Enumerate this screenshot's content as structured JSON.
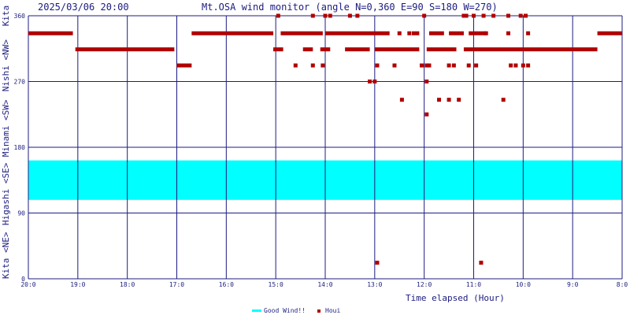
{
  "header": {
    "datetime": "2025/03/06 20:00",
    "title": "Mt.OSA wind monitor (angle N=0,360 E=90 S=180 W=270)"
  },
  "y_axis": {
    "ticks": [
      {
        "value": 360,
        "label": "360"
      },
      {
        "value": 270,
        "label": "270"
      },
      {
        "value": 180,
        "label": "180"
      },
      {
        "value": 90,
        "label": "90"
      },
      {
        "value": 0,
        "label": "0"
      }
    ],
    "direction_labels": [
      {
        "text": "Kita",
        "center": 360
      },
      {
        "text": "Nishi <NW>",
        "center": 292
      },
      {
        "text": "Minami <SW>",
        "center": 206
      },
      {
        "text": "Higashi <SE>",
        "center": 116
      },
      {
        "text": "Kita <NE>",
        "center": 32
      }
    ]
  },
  "x_axis": {
    "label": "Time elapsed (Hour)",
    "ticks": [
      "20:0",
      "19:0",
      "18:0",
      "17:0",
      "16:0",
      "15:0",
      "14:0",
      "13:0",
      "12:0",
      "11:0",
      "10:0",
      "9:0",
      "8:0"
    ]
  },
  "legend": {
    "good_wind_label": "Good Wind!!",
    "houi_label": "Houi"
  },
  "colors": {
    "grid": "#1c1c80",
    "good_wind": "#00ffff",
    "houi": "#b00000",
    "text": "#1c1c80"
  },
  "chart_data": {
    "type": "scatter",
    "xlabel": "Time elapsed (Hour)",
    "x_unit": "hour of day (20.0 at left edge decreasing to 8.0 at right edge)",
    "xlim": [
      20,
      8
    ],
    "ylim": [
      0,
      360
    ],
    "good_wind_band": [
      108,
      162
    ],
    "series": [
      {
        "name": "Houi",
        "segments": [
          {
            "x_from": 20.0,
            "x_to": 19.1,
            "y": 336
          },
          {
            "x_from": 19.05,
            "x_to": 17.05,
            "y": 314
          },
          {
            "x_from": 17.0,
            "x_to": 16.7,
            "y": 292
          },
          {
            "x_from": 16.7,
            "x_to": 15.05,
            "y": 336
          },
          {
            "x_from": 15.05,
            "x_to": 14.85,
            "y": 314
          },
          {
            "x_from": 14.9,
            "x_to": 14.05,
            "y": 336
          },
          {
            "x_from": 14.45,
            "x_to": 14.25,
            "y": 314
          },
          {
            "x_from": 14.0,
            "x_to": 12.7,
            "y": 336
          },
          {
            "x_from": 14.1,
            "x_to": 13.9,
            "y": 314
          },
          {
            "x_from": 13.6,
            "x_to": 13.1,
            "y": 314
          },
          {
            "x_from": 13.0,
            "x_to": 12.1,
            "y": 314
          },
          {
            "x_from": 12.25,
            "x_to": 12.1,
            "y": 336
          },
          {
            "x_from": 11.9,
            "x_to": 11.6,
            "y": 336
          },
          {
            "x_from": 11.5,
            "x_to": 11.2,
            "y": 336
          },
          {
            "x_from": 11.95,
            "x_to": 11.35,
            "y": 314
          },
          {
            "x_from": 11.1,
            "x_to": 10.75,
            "y": 336
          },
          {
            "x_from": 11.2,
            "x_to": 10.0,
            "y": 314
          },
          {
            "x_from": 10.0,
            "x_to": 8.5,
            "y": 314
          },
          {
            "x_from": 8.5,
            "x_to": 8.0,
            "y": 336
          }
        ],
        "points": [
          [
            14.95,
            360
          ],
          [
            14.25,
            360
          ],
          [
            14.0,
            360
          ],
          [
            13.9,
            360
          ],
          [
            13.5,
            360
          ],
          [
            13.35,
            360
          ],
          [
            12.0,
            360
          ],
          [
            11.2,
            360
          ],
          [
            11.15,
            360
          ],
          [
            11.0,
            360
          ],
          [
            10.8,
            360
          ],
          [
            10.6,
            360
          ],
          [
            10.3,
            360
          ],
          [
            10.05,
            360
          ],
          [
            9.95,
            360
          ],
          [
            12.5,
            336
          ],
          [
            12.3,
            336
          ],
          [
            10.75,
            336
          ],
          [
            10.3,
            336
          ],
          [
            9.9,
            336
          ],
          [
            14.6,
            292
          ],
          [
            14.25,
            292
          ],
          [
            14.05,
            292
          ],
          [
            12.95,
            292
          ],
          [
            12.6,
            292
          ],
          [
            12.05,
            292
          ],
          [
            11.95,
            292
          ],
          [
            11.9,
            292
          ],
          [
            11.5,
            292
          ],
          [
            11.4,
            292
          ],
          [
            11.1,
            292
          ],
          [
            10.95,
            292
          ],
          [
            10.25,
            292
          ],
          [
            10.15,
            292
          ],
          [
            10.0,
            292
          ],
          [
            9.9,
            292
          ],
          [
            13.1,
            270
          ],
          [
            13.0,
            270
          ],
          [
            11.95,
            270
          ],
          [
            12.45,
            245
          ],
          [
            11.7,
            245
          ],
          [
            11.5,
            245
          ],
          [
            11.3,
            245
          ],
          [
            10.4,
            245
          ],
          [
            11.95,
            225
          ],
          [
            12.95,
            22
          ],
          [
            10.85,
            22
          ]
        ]
      }
    ]
  }
}
